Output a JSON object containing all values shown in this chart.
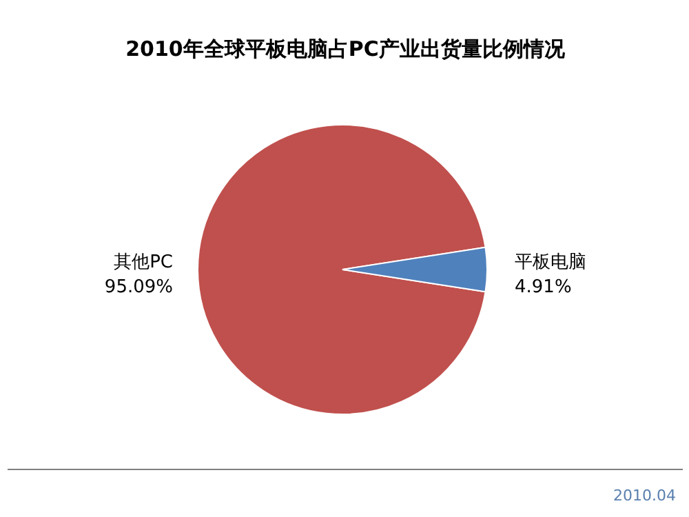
{
  "chart_data": {
    "type": "pie",
    "title": "2010年全球平板电脑占PC产业出货量比例情况",
    "categories": [
      "其他PC",
      "平板电脑"
    ],
    "values": [
      95.09,
      4.91
    ],
    "colors": [
      "#c0504d",
      "#4f81bd"
    ],
    "value_labels": [
      "95.09%",
      "4.91%"
    ],
    "annotations": [
      "2010.04"
    ]
  }
}
